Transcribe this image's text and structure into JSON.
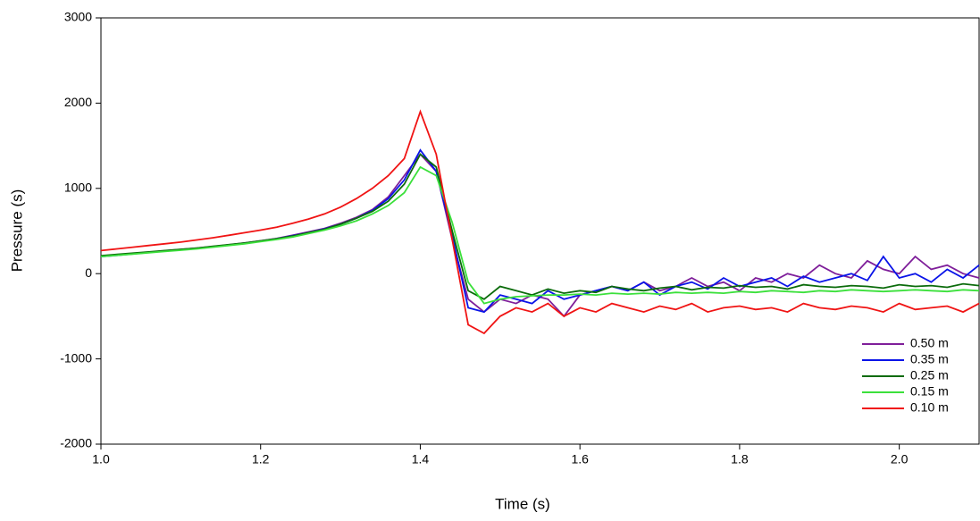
{
  "chart_data": {
    "type": "line",
    "xlabel": "Time (s)",
    "ylabel": "Pressure (s)",
    "xlim": [
      1.0,
      2.1
    ],
    "ylim": [
      -2000,
      3000
    ],
    "xticks": [
      {
        "value": 1,
        "label": "1.0"
      },
      1.2,
      1.4,
      1.6,
      1.8,
      {
        "value": 2,
        "label": "2.0"
      }
    ],
    "yticks": [
      -2000,
      -1000,
      0,
      1000,
      2000,
      3000
    ],
    "grid": false,
    "legend": "lower right",
    "x": [
      1,
      1.02,
      1.04,
      1.06,
      1.08,
      1.1,
      1.12,
      1.14,
      1.16,
      1.18,
      1.2,
      1.22,
      1.24,
      1.26,
      1.28,
      1.3,
      1.32,
      1.34,
      1.36,
      1.38,
      1.4,
      1.42,
      1.44,
      1.46,
      1.48,
      1.5,
      1.52,
      1.54,
      1.56,
      1.58,
      1.6,
      1.62,
      1.64,
      1.66,
      1.68,
      1.7,
      1.72,
      1.74,
      1.76,
      1.78,
      1.8,
      1.82,
      1.84,
      1.86,
      1.88,
      1.9,
      1.92,
      1.94,
      1.96,
      1.98,
      2,
      2.02,
      2.04,
      2.06,
      2.08,
      2.1
    ],
    "series": [
      {
        "name": "0.50 m",
        "color": "#7f1f9a",
        "values": [
          205,
          220,
          235,
          250,
          268,
          283,
          300,
          318,
          338,
          360,
          385,
          412,
          450,
          490,
          530,
          590,
          660,
          750,
          900,
          1150,
          1400,
          1200,
          400,
          -300,
          -450,
          -300,
          -350,
          -250,
          -300,
          -500,
          -250,
          -200,
          -150,
          -200,
          -100,
          -200,
          -150,
          -50,
          -150,
          -100,
          -200,
          -50,
          -100,
          0,
          -50,
          100,
          0,
          -50,
          150,
          50,
          0,
          200,
          50,
          100,
          0,
          -50
        ]
      },
      {
        "name": "0.35 m",
        "color": "#0a14e8",
        "values": [
          200,
          215,
          232,
          248,
          265,
          280,
          297,
          315,
          336,
          357,
          380,
          410,
          445,
          480,
          525,
          580,
          650,
          740,
          880,
          1100,
          1450,
          1200,
          450,
          -400,
          -450,
          -250,
          -300,
          -350,
          -200,
          -300,
          -250,
          -200,
          -150,
          -200,
          -100,
          -250,
          -150,
          -100,
          -180,
          -50,
          -150,
          -100,
          -50,
          -150,
          -30,
          -100,
          -50,
          0,
          -80,
          200,
          -50,
          0,
          -100,
          50,
          -50,
          100
        ]
      },
      {
        "name": "0.25 m",
        "color": "#0b6b0b",
        "values": [
          210,
          225,
          240,
          255,
          270,
          285,
          300,
          320,
          340,
          360,
          385,
          410,
          440,
          480,
          520,
          580,
          650,
          730,
          850,
          1050,
          1400,
          1250,
          500,
          -200,
          -300,
          -150,
          -200,
          -250,
          -180,
          -230,
          -200,
          -220,
          -150,
          -180,
          -200,
          -170,
          -150,
          -190,
          -160,
          -170,
          -140,
          -160,
          -150,
          -180,
          -130,
          -150,
          -160,
          -140,
          -150,
          -170,
          -130,
          -150,
          -140,
          -160,
          -120,
          -140
        ]
      },
      {
        "name": "0.15 m",
        "color": "#3be03b",
        "values": [
          200,
          215,
          230,
          245,
          260,
          275,
          290,
          310,
          330,
          350,
          375,
          400,
          430,
          470,
          510,
          560,
          620,
          700,
          800,
          950,
          1250,
          1150,
          600,
          -100,
          -350,
          -300,
          -270,
          -260,
          -250,
          -250,
          -240,
          -250,
          -230,
          -240,
          -230,
          -240,
          -220,
          -230,
          -220,
          -230,
          -210,
          -220,
          -200,
          -210,
          -220,
          -200,
          -210,
          -190,
          -200,
          -210,
          -200,
          -190,
          -200,
          -210,
          -190,
          -200
        ]
      },
      {
        "name": "0.10 m",
        "color": "#f01414",
        "values": [
          270,
          290,
          310,
          330,
          350,
          370,
          395,
          420,
          450,
          480,
          510,
          545,
          590,
          640,
          700,
          780,
          880,
          1000,
          1150,
          1350,
          1900,
          1400,
          400,
          -600,
          -700,
          -500,
          -400,
          -450,
          -350,
          -500,
          -400,
          -450,
          -350,
          -400,
          -450,
          -380,
          -420,
          -350,
          -450,
          -400,
          -380,
          -420,
          -400,
          -450,
          -350,
          -400,
          -420,
          -380,
          -400,
          -450,
          -350,
          -420,
          -400,
          -380,
          -450,
          -350
        ]
      }
    ]
  }
}
